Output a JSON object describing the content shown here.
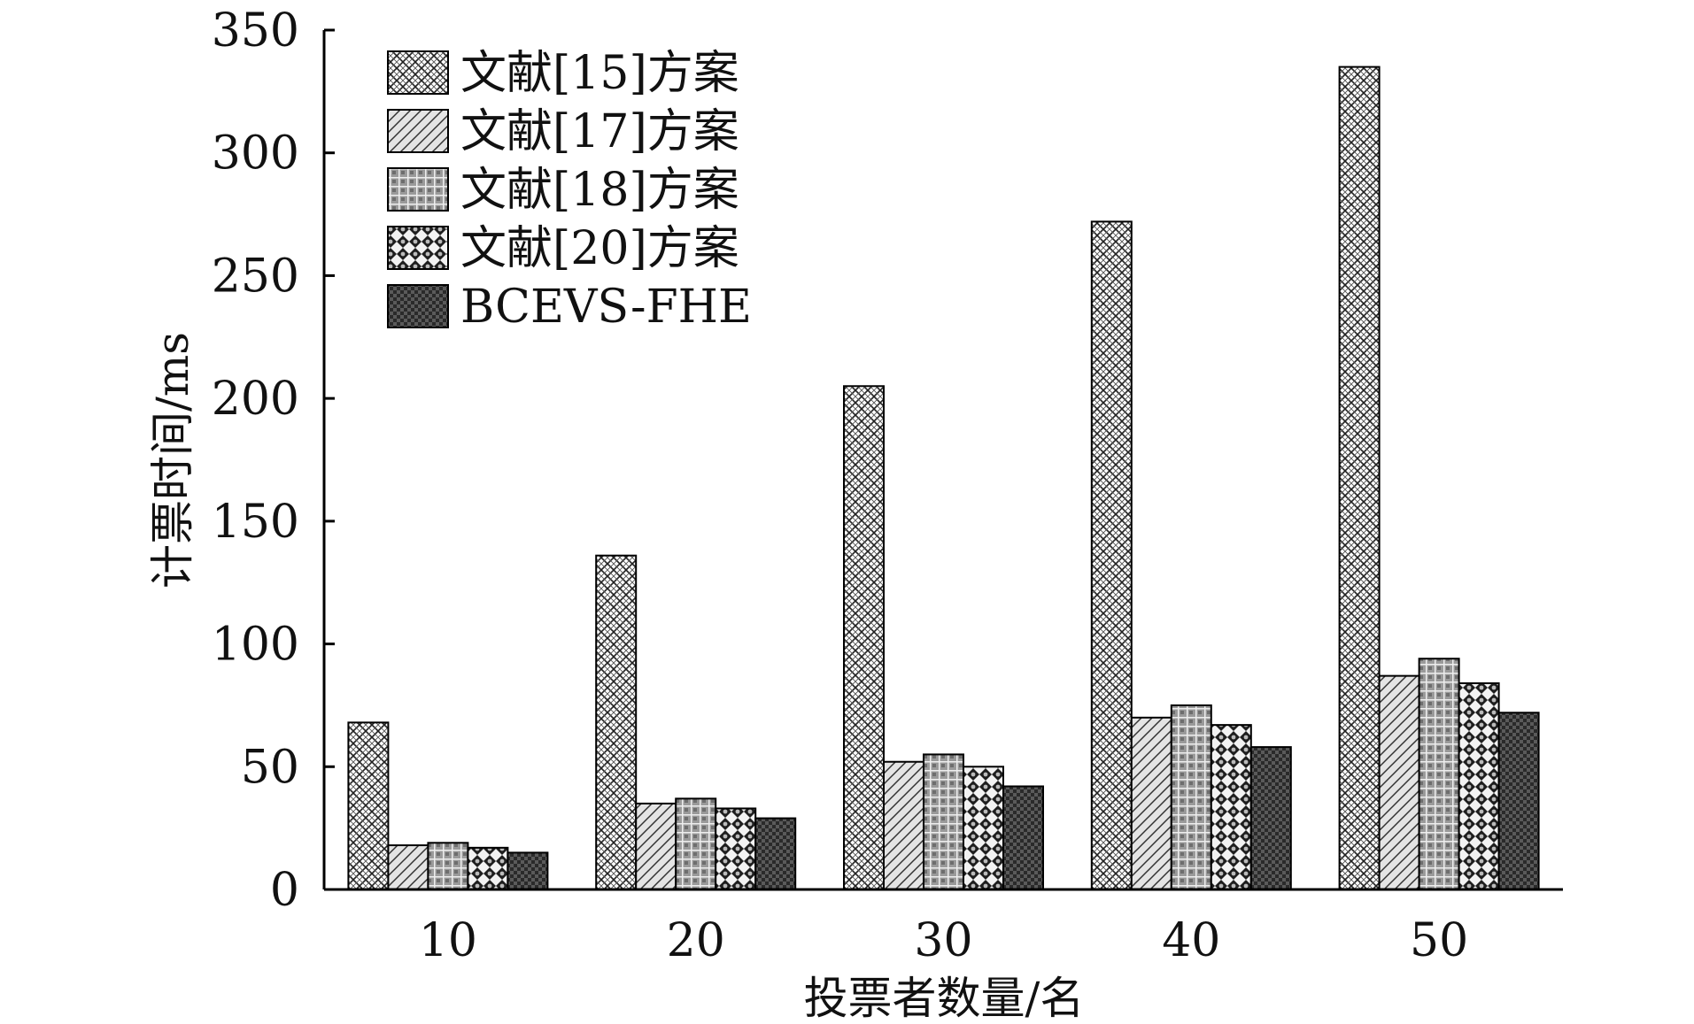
{
  "chart_data": {
    "type": "bar",
    "title": "",
    "xlabel": "投票者数量/名",
    "ylabel": "计票时间/ms",
    "categories": [
      "10",
      "20",
      "30",
      "40",
      "50"
    ],
    "ylim": [
      0,
      350
    ],
    "yticks": [
      "0",
      "50",
      "100",
      "150",
      "200",
      "250",
      "300",
      "350"
    ],
    "grid": false,
    "legend_position": "top-left",
    "series": [
      {
        "name": "文献[15]方案",
        "pattern": "diamond-crosshatch",
        "values": [
          68,
          136,
          205,
          272,
          335
        ]
      },
      {
        "name": "文献[17]方案",
        "pattern": "diagonal-hatch",
        "values": [
          18,
          35,
          52,
          70,
          87
        ]
      },
      {
        "name": "文献[18]方案",
        "pattern": "grid-gray",
        "values": [
          19,
          37,
          55,
          75,
          94
        ]
      },
      {
        "name": "文献[20]方案",
        "pattern": "checker-gray",
        "values": [
          17,
          33,
          50,
          67,
          84
        ]
      },
      {
        "name": "BCEVS-FHE",
        "pattern": "checker-dark",
        "values": [
          15,
          29,
          42,
          58,
          72
        ]
      }
    ]
  }
}
